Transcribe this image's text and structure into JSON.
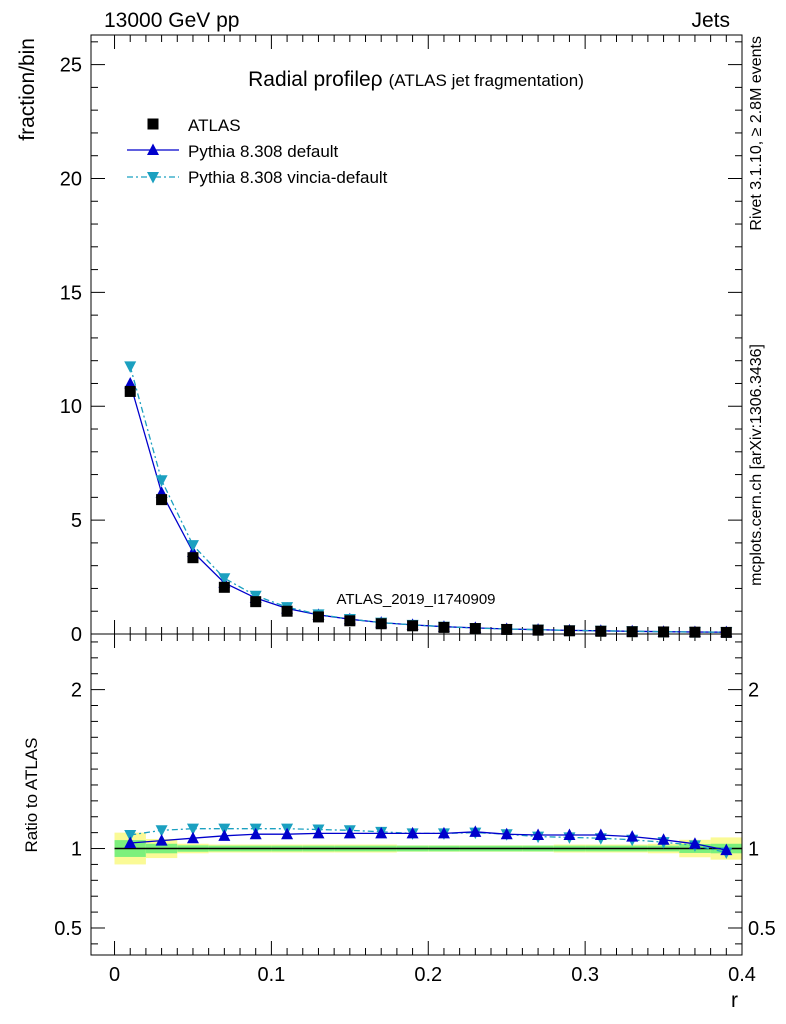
{
  "header": {
    "left": "13000 GeV pp",
    "right": "Jets"
  },
  "side_labels": {
    "rivet": "Rivet 3.1.10, ≥ 2.8M events",
    "source": "mcplots.cern.ch [arXiv:1306.3436]"
  },
  "colors": {
    "atlas": "#000000",
    "default": "#0000cc",
    "vincia": "#1ba0c0",
    "band_inner": "#7cf07c",
    "band_outer": "#fafa96"
  },
  "chart_data": [
    {
      "type": "line",
      "title": "Radial profileρ",
      "subtitle": "(ATLAS jet fragmentation)",
      "ylabel": "fraction/bin",
      "watermark": "ATLAS_2019_I1740909",
      "xlim": [
        -0.015,
        0.4
      ],
      "ylim": [
        0,
        26.3
      ],
      "yticks": [
        0,
        5,
        10,
        15,
        20,
        25
      ],
      "ytick_labels": [
        "0",
        "5",
        "10",
        "15",
        "20",
        "25"
      ],
      "legend_position": "top-left",
      "x": [
        0.01,
        0.03,
        0.05,
        0.07,
        0.09,
        0.11,
        0.13,
        0.15,
        0.17,
        0.19,
        0.21,
        0.23,
        0.25,
        0.27,
        0.29,
        0.31,
        0.33,
        0.35,
        0.37,
        0.39
      ],
      "series": [
        {
          "name": "ATLAS",
          "style": "square",
          "values": [
            10.65,
            5.9,
            3.35,
            2.05,
            1.42,
            1.0,
            0.75,
            0.58,
            0.45,
            0.36,
            0.29,
            0.24,
            0.2,
            0.17,
            0.14,
            0.12,
            0.1,
            0.09,
            0.08,
            0.07
          ]
        },
        {
          "name": "Pythia 8.308 default",
          "style": "solid-triangle-up",
          "values": [
            11.0,
            6.2,
            3.6,
            2.25,
            1.58,
            1.12,
            0.84,
            0.65,
            0.5,
            0.4,
            0.32,
            0.27,
            0.22,
            0.19,
            0.16,
            0.14,
            0.12,
            0.1,
            0.09,
            0.08
          ]
        },
        {
          "name": "Pythia 8.308 vincia-default",
          "style": "dashdot-triangle-down",
          "values": [
            11.75,
            6.75,
            3.9,
            2.45,
            1.68,
            1.18,
            0.86,
            0.66,
            0.5,
            0.4,
            0.32,
            0.26,
            0.22,
            0.19,
            0.16,
            0.14,
            0.12,
            0.1,
            0.09,
            0.08
          ]
        }
      ]
    },
    {
      "type": "line",
      "ylabel": "Ratio to ATLAS",
      "xlabel": "r",
      "xlim": [
        -0.015,
        0.4
      ],
      "ylim": [
        0.33,
        2.35
      ],
      "yticks": [
        0.5,
        1,
        2
      ],
      "ytick_labels": [
        "0.5",
        "1",
        "2"
      ],
      "xticks": [
        0,
        0.1,
        0.2,
        0.3,
        0.4
      ],
      "xtick_labels": [
        "0",
        "0.1",
        "0.2",
        "0.3",
        "0.4"
      ],
      "x": [
        0.01,
        0.03,
        0.05,
        0.07,
        0.09,
        0.11,
        0.13,
        0.15,
        0.17,
        0.19,
        0.21,
        0.23,
        0.25,
        0.27,
        0.29,
        0.31,
        0.33,
        0.35,
        0.37,
        0.39
      ],
      "bin_edges": [
        0.0,
        0.02,
        0.04,
        0.06,
        0.08,
        0.1,
        0.12,
        0.14,
        0.16,
        0.18,
        0.2,
        0.22,
        0.24,
        0.26,
        0.28,
        0.3,
        0.32,
        0.34,
        0.36,
        0.38,
        0.4
      ],
      "band_inner": [
        0.053,
        0.03,
        0.02,
        0.018,
        0.018,
        0.018,
        0.018,
        0.018,
        0.018,
        0.018,
        0.018,
        0.018,
        0.018,
        0.018,
        0.018,
        0.018,
        0.018,
        0.018,
        0.028,
        0.03
      ],
      "band_outer": [
        0.1,
        0.06,
        0.03,
        0.025,
        0.025,
        0.025,
        0.025,
        0.025,
        0.025,
        0.02,
        0.02,
        0.02,
        0.02,
        0.02,
        0.025,
        0.025,
        0.025,
        0.03,
        0.055,
        0.07
      ],
      "series": [
        {
          "name": "Pythia 8.308 default",
          "style": "solid-triangle-up",
          "values": [
            1.035,
            1.05,
            1.065,
            1.08,
            1.09,
            1.09,
            1.095,
            1.095,
            1.095,
            1.095,
            1.095,
            1.105,
            1.09,
            1.085,
            1.085,
            1.085,
            1.075,
            1.055,
            1.03,
            0.99
          ]
        },
        {
          "name": "Pythia 8.308 vincia-default",
          "style": "dashdot-triangle-down",
          "values": [
            1.085,
            1.115,
            1.125,
            1.125,
            1.125,
            1.125,
            1.12,
            1.115,
            1.105,
            1.095,
            1.095,
            1.1,
            1.09,
            1.075,
            1.07,
            1.065,
            1.055,
            1.04,
            1.02,
            0.975
          ]
        }
      ]
    }
  ]
}
